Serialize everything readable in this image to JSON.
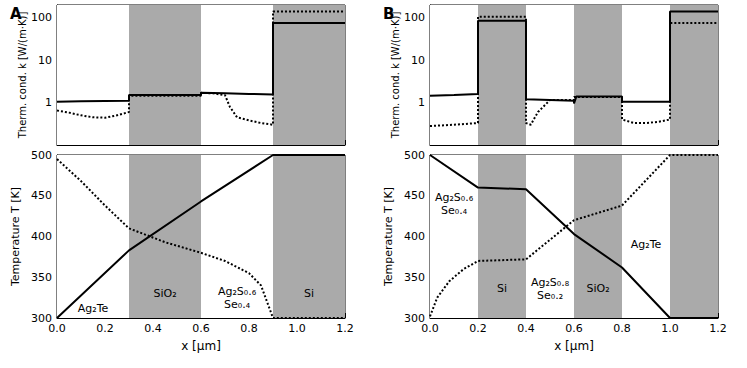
{
  "chart_data": [
    {
      "type": "line",
      "title": "A",
      "ylabel": "Therm. cond. k [W/(m·K)]",
      "log": "y",
      "tick_labels": "y",
      "grid": false,
      "xlim": [
        0,
        1.2
      ],
      "xticks": [
        {
          "value": 0,
          "label": "0.0"
        },
        0.2,
        0.4,
        0.6,
        0.8,
        {
          "value": 1,
          "label": "1.0"
        },
        1.2
      ],
      "ylim": [
        0.1,
        200
      ],
      "yticks": [
        1,
        10,
        100
      ],
      "regions": [
        {
          "from": 0,
          "to": 0.3,
          "color": "#ffffff"
        },
        {
          "from": 0.3,
          "to": 0.6,
          "color": "#aaaaaa"
        },
        {
          "from": 0.6,
          "to": 0.9,
          "color": "#ffffff"
        },
        {
          "from": 0.9,
          "to": 1.2,
          "color": "#aaaaaa"
        }
      ],
      "series": [
        {
          "color": "#000000",
          "line_style": "solid",
          "x": [
            0,
            0.1,
            0.2,
            0.3,
            0.3,
            0.6,
            0.6,
            0.7,
            0.8,
            0.9,
            0.9,
            1.2
          ],
          "values": [
            1.05,
            1.07,
            1.09,
            1.1,
            1.5,
            1.5,
            1.7,
            1.65,
            1.6,
            1.55,
            75,
            75
          ]
        },
        {
          "color": "#000000",
          "line_style": "dotted",
          "x": [
            0,
            0.05,
            0.1,
            0.15,
            0.2,
            0.25,
            0.3,
            0.3,
            0.6,
            0.6,
            0.65,
            0.7,
            0.72,
            0.75,
            0.8,
            0.85,
            0.9,
            0.9,
            1.2
          ],
          "values": [
            0.65,
            0.58,
            0.5,
            0.45,
            0.44,
            0.5,
            0.6,
            1.45,
            1.45,
            1.7,
            1.65,
            1.5,
            0.8,
            0.45,
            0.38,
            0.33,
            0.3,
            140,
            140
          ]
        }
      ]
    },
    {
      "type": "line",
      "xlabel": "x [μm]",
      "ylabel": "Temperature T [K]",
      "grid": false,
      "xlim": [
        0,
        1.2
      ],
      "xticks": [
        {
          "value": 0,
          "label": "0.0"
        },
        0.2,
        0.4,
        0.6,
        0.8,
        {
          "value": 1,
          "label": "1.0"
        },
        1.2
      ],
      "ylim": [
        300,
        500
      ],
      "yticks": [
        300,
        350,
        400,
        450,
        500
      ],
      "regions": [
        {
          "from": 0,
          "to": 0.3,
          "color": "#ffffff",
          "label": "Ag₂Te"
        },
        {
          "from": 0.3,
          "to": 0.6,
          "color": "#aaaaaa",
          "label": "SiO₂"
        },
        {
          "from": 0.6,
          "to": 0.9,
          "color": "#ffffff",
          "label": "Ag₂S₀.₆\nSe₀.₄"
        },
        {
          "from": 0.9,
          "to": 1.2,
          "color": "#aaaaaa",
          "label": "Si"
        }
      ],
      "series": [
        {
          "color": "#000000",
          "line_style": "solid",
          "x": [
            0,
            0.3,
            0.6,
            0.9,
            1.2
          ],
          "values": [
            300,
            383,
            443,
            500,
            500
          ]
        },
        {
          "color": "#000000",
          "line_style": "dotted",
          "x": [
            0,
            0.1,
            0.2,
            0.3,
            0.45,
            0.6,
            0.7,
            0.8,
            0.85,
            0.9,
            1.2
          ],
          "values": [
            495,
            468,
            438,
            410,
            393,
            380,
            370,
            355,
            340,
            300,
            300
          ]
        }
      ]
    },
    {
      "type": "line",
      "title": "B",
      "ylabel": "Therm. cond. k [W/(m·K)]",
      "log": "y",
      "tick_labels": "y",
      "grid": false,
      "xlim": [
        0,
        1.2
      ],
      "xticks": [
        {
          "value": 0,
          "label": "0.0"
        },
        0.2,
        0.4,
        0.6,
        0.8,
        {
          "value": 1,
          "label": "1.0"
        },
        1.2
      ],
      "ylim": [
        0.1,
        200
      ],
      "yticks": [
        1,
        10,
        100
      ],
      "regions": [
        {
          "from": 0,
          "to": 0.2,
          "color": "#ffffff"
        },
        {
          "from": 0.2,
          "to": 0.4,
          "color": "#aaaaaa"
        },
        {
          "from": 0.4,
          "to": 0.6,
          "color": "#ffffff"
        },
        {
          "from": 0.6,
          "to": 0.8,
          "color": "#aaaaaa"
        },
        {
          "from": 0.8,
          "to": 1.0,
          "color": "#ffffff"
        },
        {
          "from": 1.0,
          "to": 1.2,
          "color": "#aaaaaa"
        }
      ],
      "series": [
        {
          "color": "#000000",
          "line_style": "solid",
          "x": [
            0,
            0.1,
            0.2,
            0.2,
            0.4,
            0.4,
            0.5,
            0.6,
            0.6,
            0.61,
            0.8,
            0.8,
            1.0,
            1.0,
            1.2
          ],
          "values": [
            1.45,
            1.5,
            1.6,
            85,
            85,
            1.2,
            1.15,
            1.1,
            0.95,
            1.4,
            1.4,
            1.05,
            1.05,
            140,
            140
          ]
        },
        {
          "color": "#000000",
          "line_style": "dotted",
          "x": [
            0,
            0.1,
            0.2,
            0.2,
            0.4,
            0.4,
            0.42,
            0.45,
            0.5,
            0.6,
            0.6,
            0.8,
            0.8,
            0.85,
            0.9,
            0.95,
            1.0,
            1.0,
            1.2
          ],
          "values": [
            0.28,
            0.3,
            0.33,
            105,
            105,
            0.33,
            0.3,
            0.6,
            1.15,
            1.15,
            1.35,
            1.35,
            0.4,
            0.33,
            0.33,
            0.35,
            0.4,
            75,
            75
          ]
        }
      ]
    },
    {
      "type": "line",
      "xlabel": "x [μm]",
      "ylabel": "Temperature T [K]",
      "grid": false,
      "xlim": [
        0,
        1.2
      ],
      "xticks": [
        {
          "value": 0,
          "label": "0.0"
        },
        0.2,
        0.4,
        0.6,
        0.8,
        {
          "value": 1,
          "label": "1.0"
        },
        1.2
      ],
      "ylim": [
        300,
        500
      ],
      "yticks": [
        300,
        350,
        400,
        450,
        500
      ],
      "regions": [
        {
          "from": 0,
          "to": 0.2,
          "color": "#ffffff",
          "label": "Ag₂S₀.₆\nSe₀.₄"
        },
        {
          "from": 0.2,
          "to": 0.4,
          "color": "#aaaaaa",
          "label": "Si"
        },
        {
          "from": 0.4,
          "to": 0.6,
          "color": "#ffffff",
          "label": "Ag₂S₀.₈\nSe₀.₂"
        },
        {
          "from": 0.6,
          "to": 0.8,
          "color": "#aaaaaa",
          "label": "SiO₂"
        },
        {
          "from": 0.8,
          "to": 1.0,
          "color": "#ffffff",
          "label": "Ag₂Te"
        },
        {
          "from": 1.0,
          "to": 1.2,
          "color": "#aaaaaa"
        }
      ],
      "series": [
        {
          "color": "#000000",
          "line_style": "solid",
          "x": [
            0,
            0.2,
            0.4,
            0.6,
            0.8,
            1.0,
            1.2
          ],
          "values": [
            500,
            460,
            458,
            403,
            362,
            300,
            300
          ]
        },
        {
          "color": "#000000",
          "line_style": "dotted",
          "x": [
            0,
            0.03,
            0.08,
            0.14,
            0.2,
            0.4,
            0.6,
            0.8,
            1.0,
            1.2
          ],
          "values": [
            302,
            325,
            345,
            360,
            370,
            372,
            420,
            438,
            500,
            500
          ]
        }
      ]
    }
  ]
}
